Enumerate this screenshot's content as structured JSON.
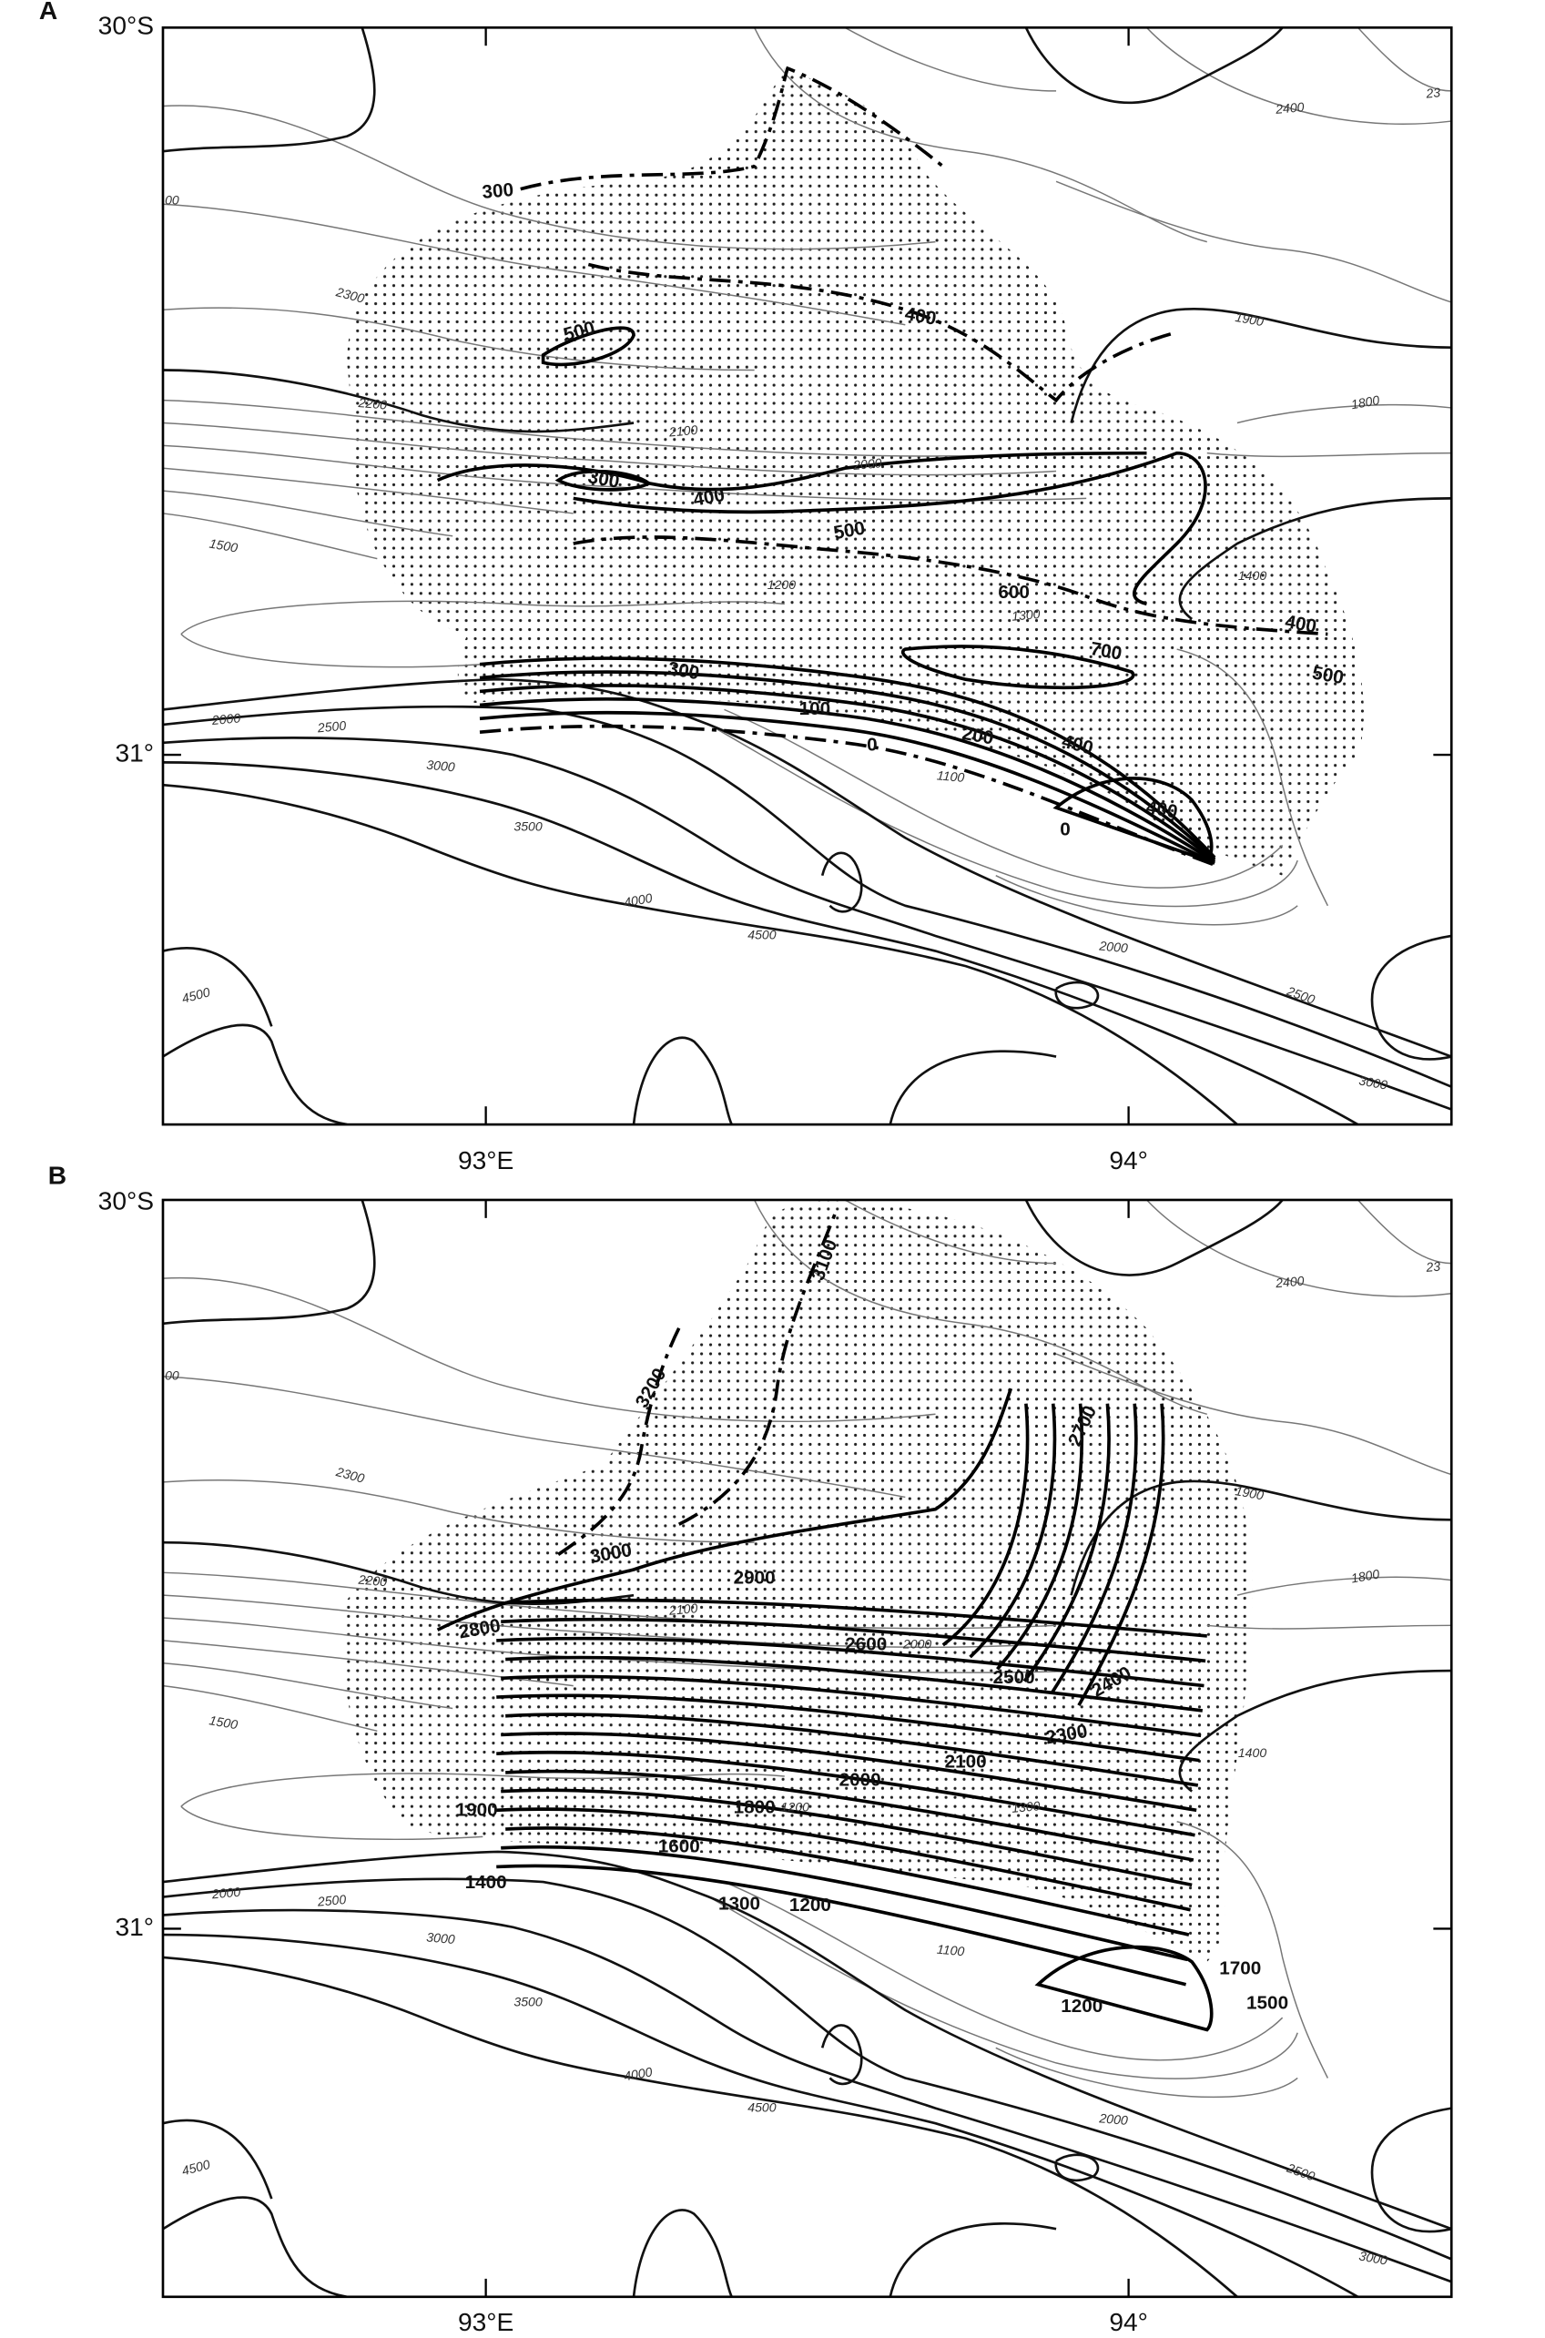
{
  "panels": [
    {
      "label": "A",
      "lat_labels": [
        "30°S",
        "31°"
      ],
      "lon_labels": [
        "93°E",
        "94°"
      ],
      "contour_labels": [
        "2400",
        "23",
        "00",
        "300",
        "2300",
        "500",
        "400",
        "1900",
        "1800",
        "2200",
        "2100",
        "2000",
        "300",
        "400",
        "500",
        "1500",
        "1400",
        "600",
        "400",
        "1200",
        "1300",
        "700",
        "500",
        "300",
        "100",
        "0",
        "200",
        "400",
        "2000",
        "2500",
        "3000",
        "1100",
        "400",
        "0",
        "3500",
        "4000",
        "4500",
        "2000",
        "4500",
        "2500",
        "3000"
      ]
    },
    {
      "label": "B",
      "lat_labels": [
        "30°S",
        "31°"
      ],
      "lon_labels": [
        "93°E",
        "94°"
      ],
      "contour_labels": [
        "3100",
        "2400",
        "23",
        "00",
        "3200",
        "2700",
        "2300",
        "1900",
        "3000",
        "2900",
        "2200",
        "1800",
        "2800",
        "2100",
        "2600",
        "2000",
        "2500",
        "2400",
        "1500",
        "2300",
        "2100",
        "1400",
        "2000",
        "1900",
        "1800",
        "1200",
        "1300",
        "1600",
        "1400",
        "1300",
        "1200",
        "2000",
        "2500",
        "3000",
        "1700",
        "1100",
        "1200",
        "1500",
        "3500",
        "4000",
        "4500",
        "2000",
        "4500",
        "2500",
        "3000"
      ]
    }
  ]
}
